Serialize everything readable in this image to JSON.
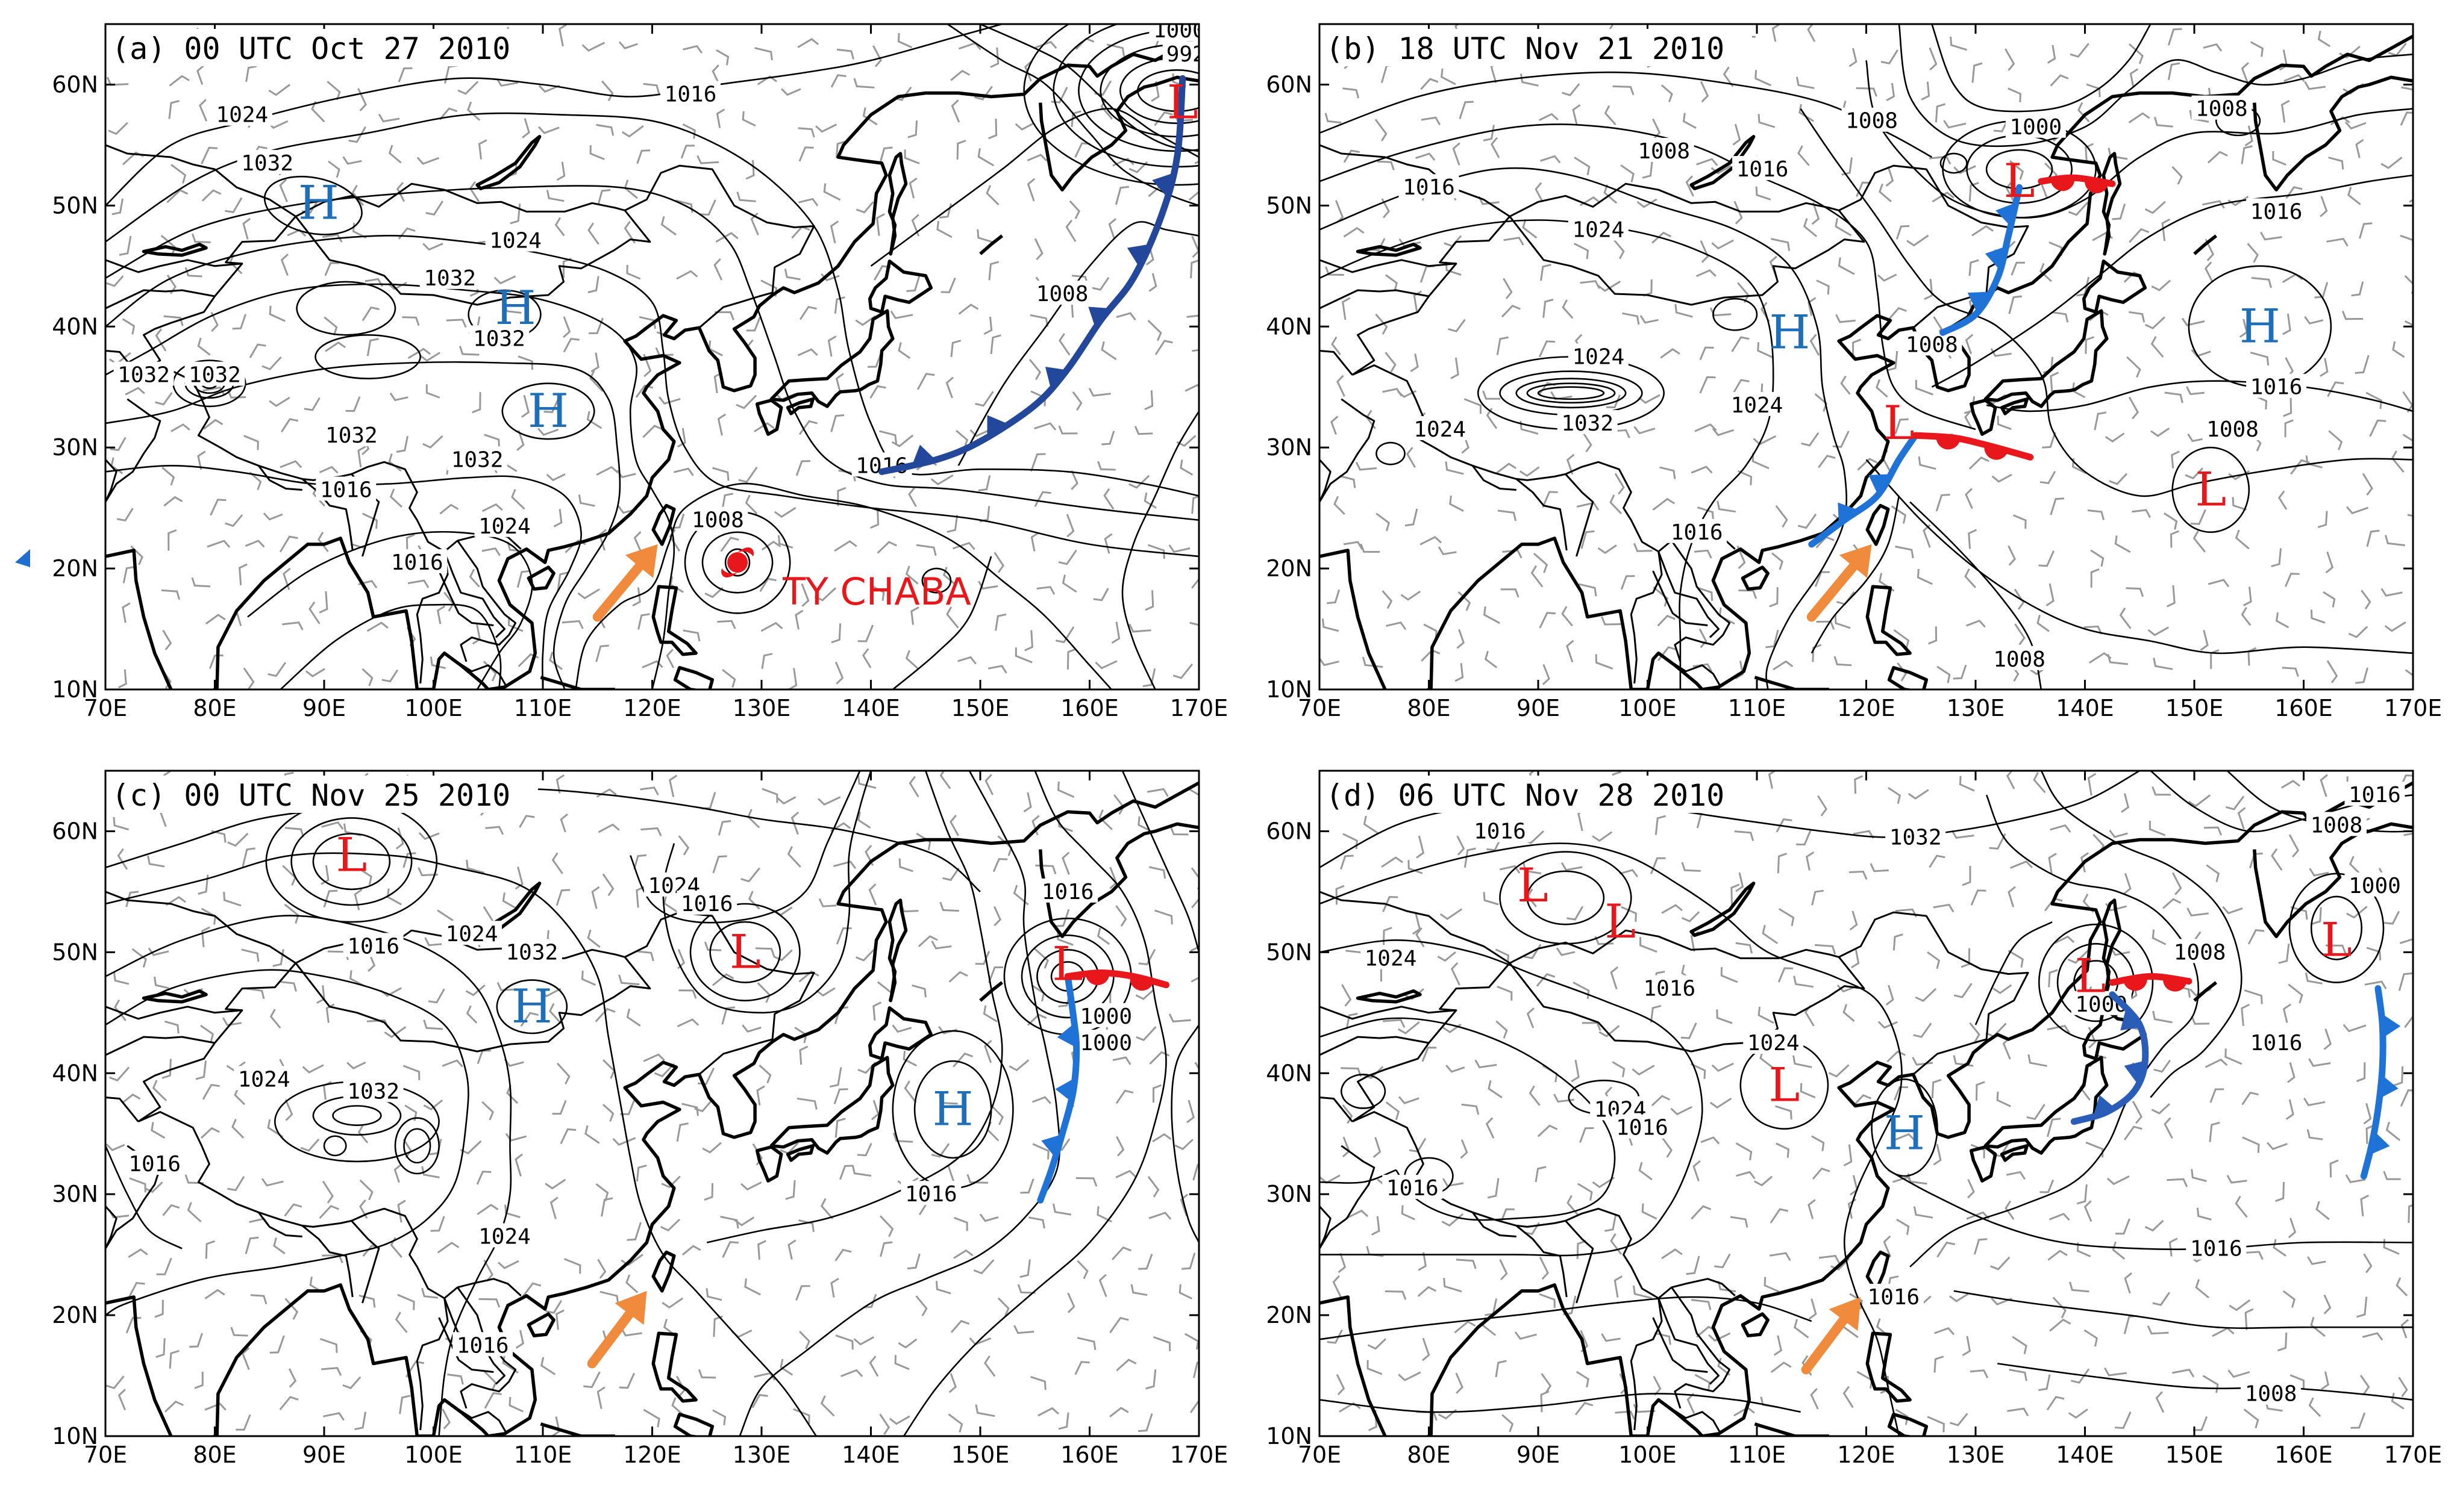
{
  "colors": {
    "isobar": "#000000",
    "coast": "#000000",
    "wind_barb": "#999999",
    "high": "#1f6fb8",
    "low": "#e8171b",
    "cold_front": "#1f6fd0",
    "warm_front": "#e8171b",
    "arrow": "#f08a3c",
    "typhoon": "#e8171b"
  },
  "panels": [
    {
      "id": "a",
      "title": "(a) 00 UTC Oct 27 2010",
      "lat_ticks": [
        "60N",
        "50N",
        "40N",
        "30N",
        "20N",
        "10N"
      ],
      "lon_ticks": [
        "70E",
        "80E",
        "90E",
        "100E",
        "110E",
        "120E",
        "130E",
        "140E",
        "150E",
        "160E",
        "170E"
      ],
      "isobar_labels": [
        {
          "text": "1024",
          "lon": 82.5,
          "lat": 57.5
        },
        {
          "text": "1032",
          "lon": 84.8,
          "lat": 53.5
        },
        {
          "text": "1016",
          "lon": 123.5,
          "lat": 59.2
        },
        {
          "text": "1000",
          "lon": 168.2,
          "lat": 64.5
        },
        {
          "text": "992",
          "lon": 168.8,
          "lat": 62.5
        },
        {
          "text": "1024",
          "lon": 107.5,
          "lat": 47.1
        },
        {
          "text": "1032",
          "lon": 101.5,
          "lat": 44.0
        },
        {
          "text": "1032",
          "lon": 73.5,
          "lat": 36.0
        },
        {
          "text": "1032",
          "lon": 80.0,
          "lat": 36.0
        },
        {
          "text": "1032",
          "lon": 106.0,
          "lat": 39.0
        },
        {
          "text": "1008",
          "lon": 157.5,
          "lat": 42.7
        },
        {
          "text": "1032",
          "lon": 92.5,
          "lat": 31.0
        },
        {
          "text": "1032",
          "lon": 104.0,
          "lat": 29.0
        },
        {
          "text": "1016",
          "lon": 141.0,
          "lat": 28.5
        },
        {
          "text": "1016",
          "lon": 92.0,
          "lat": 26.5
        },
        {
          "text": "1024",
          "lon": 106.5,
          "lat": 23.5
        },
        {
          "text": "1008",
          "lon": 126.0,
          "lat": 24.0
        },
        {
          "text": "1016",
          "lon": 98.5,
          "lat": 20.5
        }
      ],
      "pressure_centers": [
        {
          "type": "H",
          "lon": 89.5,
          "lat": 50.2
        },
        {
          "type": "H",
          "lon": 107.5,
          "lat": 41.5
        },
        {
          "type": "H",
          "lon": 110.5,
          "lat": 33.0
        },
        {
          "type": "L",
          "lon": 168.5,
          "lat": 58.5
        }
      ],
      "storm": {
        "label": "TY CHABA",
        "lon": 127.8,
        "lat": 20.5
      },
      "arrows": [
        {
          "from": [
            115,
            16
          ],
          "to": [
            120.5,
            22
          ]
        }
      ]
    },
    {
      "id": "b",
      "title": "(b) 18 UTC Nov 21 2010",
      "lat_ticks": [
        "60N",
        "50N",
        "40N",
        "30N",
        "20N",
        "10N"
      ],
      "lon_ticks": [
        "70E",
        "80E",
        "90E",
        "100E",
        "110E",
        "120E",
        "130E",
        "140E",
        "150E",
        "160E",
        "170E"
      ],
      "isobar_labels": [
        {
          "text": "1008",
          "lon": 120.5,
          "lat": 57.0
        },
        {
          "text": "1000",
          "lon": 135.5,
          "lat": 56.5
        },
        {
          "text": "1008",
          "lon": 152.5,
          "lat": 58.0
        },
        {
          "text": "1008",
          "lon": 101.5,
          "lat": 54.5
        },
        {
          "text": "1016",
          "lon": 110.5,
          "lat": 53.0
        },
        {
          "text": "1016",
          "lon": 80.0,
          "lat": 51.5
        },
        {
          "text": "1016",
          "lon": 157.5,
          "lat": 49.5
        },
        {
          "text": "1024",
          "lon": 95.5,
          "lat": 48.0
        },
        {
          "text": "1008",
          "lon": 126.0,
          "lat": 38.5
        },
        {
          "text": "1024",
          "lon": 95.5,
          "lat": 37.5
        },
        {
          "text": "1024",
          "lon": 110.0,
          "lat": 33.5
        },
        {
          "text": "1016",
          "lon": 157.5,
          "lat": 35.0
        },
        {
          "text": "1024",
          "lon": 81.0,
          "lat": 31.5
        },
        {
          "text": "1032",
          "lon": 94.5,
          "lat": 32.0
        },
        {
          "text": "1008",
          "lon": 153.5,
          "lat": 31.5
        },
        {
          "text": "1016",
          "lon": 104.5,
          "lat": 23.0
        },
        {
          "text": "1008",
          "lon": 134.0,
          "lat": 12.5
        }
      ],
      "pressure_centers": [
        {
          "type": "H",
          "lon": 113.0,
          "lat": 39.5
        },
        {
          "type": "H",
          "lon": 156.0,
          "lat": 40.0
        },
        {
          "type": "L",
          "lon": 134.0,
          "lat": 52.0
        },
        {
          "type": "L",
          "lon": 123.0,
          "lat": 32.0
        },
        {
          "type": "L",
          "lon": 151.5,
          "lat": 26.5
        }
      ],
      "arrows": [
        {
          "from": [
            115,
            16
          ],
          "to": [
            120.5,
            22
          ]
        }
      ]
    },
    {
      "id": "c",
      "title": "(c) 00 UTC Nov 25 2010",
      "lat_ticks": [
        "60N",
        "50N",
        "40N",
        "30N",
        "20N",
        "10N"
      ],
      "lon_ticks": [
        "70E",
        "80E",
        "90E",
        "100E",
        "110E",
        "120E",
        "130E",
        "140E",
        "150E",
        "160E",
        "170E"
      ],
      "isobar_labels": [
        {
          "text": "1024",
          "lon": 122.0,
          "lat": 55.5
        },
        {
          "text": "1016",
          "lon": 158.0,
          "lat": 55.0
        },
        {
          "text": "1016",
          "lon": 125.0,
          "lat": 54.0
        },
        {
          "text": "1016",
          "lon": 94.5,
          "lat": 50.5
        },
        {
          "text": "1024",
          "lon": 103.5,
          "lat": 51.5
        },
        {
          "text": "1032",
          "lon": 109.0,
          "lat": 50.0
        },
        {
          "text": "1000",
          "lon": 161.5,
          "lat": 44.7
        },
        {
          "text": "1000",
          "lon": 161.5,
          "lat": 42.5
        },
        {
          "text": "1024",
          "lon": 84.5,
          "lat": 39.5
        },
        {
          "text": "1032",
          "lon": 94.5,
          "lat": 38.5
        },
        {
          "text": "1016",
          "lon": 74.5,
          "lat": 32.5
        },
        {
          "text": "1016",
          "lon": 145.5,
          "lat": 30.0
        },
        {
          "text": "1024",
          "lon": 106.5,
          "lat": 26.5
        },
        {
          "text": "1016",
          "lon": 104.5,
          "lat": 17.5
        }
      ],
      "pressure_centers": [
        {
          "type": "L",
          "lon": 92.5,
          "lat": 58.0
        },
        {
          "type": "L",
          "lon": 128.5,
          "lat": 50.0
        },
        {
          "type": "L",
          "lon": 158.0,
          "lat": 49.0
        },
        {
          "type": "H",
          "lon": 109.0,
          "lat": 45.5
        },
        {
          "type": "H",
          "lon": 147.5,
          "lat": 37.0
        }
      ],
      "arrows": [
        {
          "from": [
            114.5,
            16
          ],
          "to": [
            119.5,
            22
          ]
        }
      ]
    },
    {
      "id": "d",
      "title": "(d) 06 UTC Nov 28 2010",
      "lat_ticks": [
        "60N",
        "50N",
        "40N",
        "30N",
        "20N",
        "10N"
      ],
      "lon_ticks": [
        "70E",
        "80E",
        "90E",
        "100E",
        "110E",
        "120E",
        "130E",
        "140E",
        "150E",
        "160E",
        "170E"
      ],
      "isobar_labels": [
        {
          "text": "1016",
          "lon": 166.5,
          "lat": 63.0
        },
        {
          "text": "1008",
          "lon": 163.0,
          "lat": 60.5
        },
        {
          "text": "1016",
          "lon": 86.5,
          "lat": 60.0
        },
        {
          "text": "1032",
          "lon": 124.5,
          "lat": 59.5
        },
        {
          "text": "1000",
          "lon": 166.5,
          "lat": 55.5
        },
        {
          "text": "1008",
          "lon": 150.5,
          "lat": 50.0
        },
        {
          "text": "1024",
          "lon": 76.5,
          "lat": 49.5
        },
        {
          "text": "1016",
          "lon": 102.0,
          "lat": 47.0
        },
        {
          "text": "1000",
          "lon": 141.5,
          "lat": 45.7
        },
        {
          "text": "1016",
          "lon": 157.5,
          "lat": 42.5
        },
        {
          "text": "1024",
          "lon": 111.5,
          "lat": 42.5
        },
        {
          "text": "1024",
          "lon": 97.5,
          "lat": 37.0
        },
        {
          "text": "1016",
          "lon": 99.5,
          "lat": 35.5
        },
        {
          "text": "1016",
          "lon": 78.5,
          "lat": 30.5
        },
        {
          "text": "1016",
          "lon": 152.0,
          "lat": 25.5
        },
        {
          "text": "1016",
          "lon": 122.5,
          "lat": 21.5
        },
        {
          "text": "1008",
          "lon": 157.0,
          "lat": 13.5
        }
      ],
      "pressure_centers": [
        {
          "type": "L",
          "lon": 89.5,
          "lat": 55.5
        },
        {
          "type": "L",
          "lon": 97.5,
          "lat": 52.5
        },
        {
          "type": "L",
          "lon": 140.5,
          "lat": 48.0
        },
        {
          "type": "L",
          "lon": 163.0,
          "lat": 51.0
        },
        {
          "type": "L",
          "lon": 112.5,
          "lat": 39.0
        },
        {
          "type": "H",
          "lon": 123.5,
          "lat": 35.0
        }
      ],
      "arrows": [
        {
          "from": [
            114.5,
            15.5
          ],
          "to": [
            119.5,
            21.5
          ]
        }
      ]
    }
  ]
}
